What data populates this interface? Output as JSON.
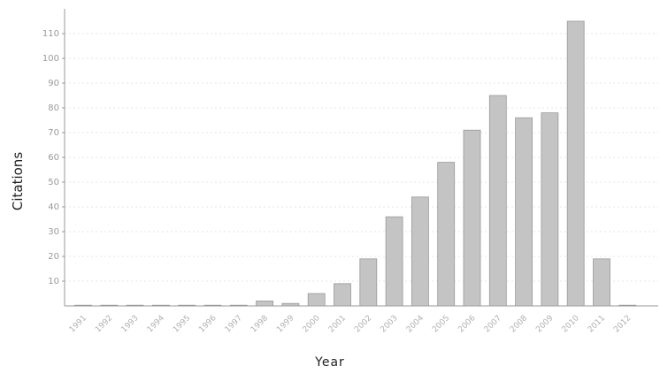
{
  "chart_data": {
    "type": "bar",
    "title": "",
    "xlabel": "Year",
    "ylabel": "Citations",
    "categories": [
      "1991",
      "1992",
      "1993",
      "1994",
      "1995",
      "1996",
      "1997",
      "1998",
      "1999",
      "2000",
      "2001",
      "2002",
      "2003",
      "2004",
      "2005",
      "2006",
      "2007",
      "2008",
      "2009",
      "2010",
      "2011",
      "2012"
    ],
    "values": [
      0,
      0,
      0,
      0,
      0,
      0,
      0,
      2,
      1,
      5,
      9,
      19,
      36,
      44,
      58,
      71,
      85,
      76,
      78,
      115,
      19,
      0
    ],
    "ylim": [
      0,
      115
    ],
    "yticks": [
      10,
      20,
      30,
      40,
      50,
      60,
      70,
      80,
      90,
      100,
      110
    ],
    "grid": true,
    "bar_color": "#c4c4c4",
    "bar_edge_color": "#9a9a9a"
  }
}
